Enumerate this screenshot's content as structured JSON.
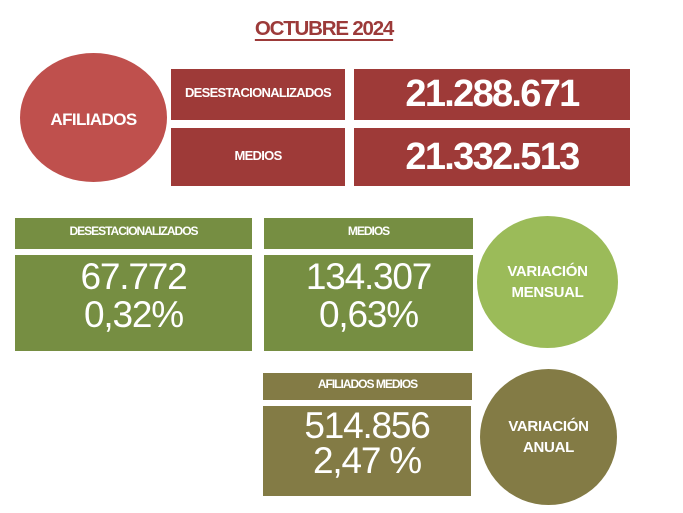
{
  "title": "OCTUBRE 2024",
  "colors": {
    "circle_red": "#bf504d",
    "bars_dark_red": "#9e3a38",
    "title_red": "#9c3a39",
    "green": "#768e42",
    "light_green": "#9bbb59",
    "olive": "#837b45",
    "text_on_fill": "#ffffff",
    "background": "#ffffff"
  },
  "afiliados": {
    "circle_label": "AFILIADOS",
    "rows": [
      {
        "label": "DESESTACIONALIZADOS",
        "value": "21.288.671"
      },
      {
        "label": "MEDIOS",
        "value": "21.332.513"
      }
    ]
  },
  "variacion_mensual": {
    "circle_label_line1": "VARIACIÓN",
    "circle_label_line2": "MENSUAL",
    "boxes": [
      {
        "header": "DESESTACIONALIZADOS",
        "value": "67.772",
        "pct": "0,32%"
      },
      {
        "header": "MEDIOS",
        "value": "134.307",
        "pct": "0,63%"
      }
    ]
  },
  "variacion_anual": {
    "circle_label_line1": "VARIACIÓN",
    "circle_label_line2": "ANUAL",
    "box": {
      "header": "AFILIADOS MEDIOS",
      "value": "514.856",
      "pct": "2,47 %"
    }
  },
  "chart_data": {
    "type": "table",
    "title": "OCTUBRE 2024",
    "groups": [
      {
        "name": "AFILIADOS",
        "rows": [
          {
            "label": "DESESTACIONALIZADOS",
            "value": 21288671
          },
          {
            "label": "MEDIOS",
            "value": 21332513
          }
        ]
      },
      {
        "name": "VARIACIÓN MENSUAL",
        "rows": [
          {
            "label": "DESESTACIONALIZADOS",
            "value": 67772,
            "pct_text": "0,32%",
            "pct": 0.32
          },
          {
            "label": "MEDIOS",
            "value": 134307,
            "pct_text": "0,63%",
            "pct": 0.63
          }
        ]
      },
      {
        "name": "VARIACIÓN ANUAL",
        "rows": [
          {
            "label": "AFILIADOS MEDIOS",
            "value": 514856,
            "pct_text": "2,47 %",
            "pct": 2.47
          }
        ]
      }
    ]
  }
}
